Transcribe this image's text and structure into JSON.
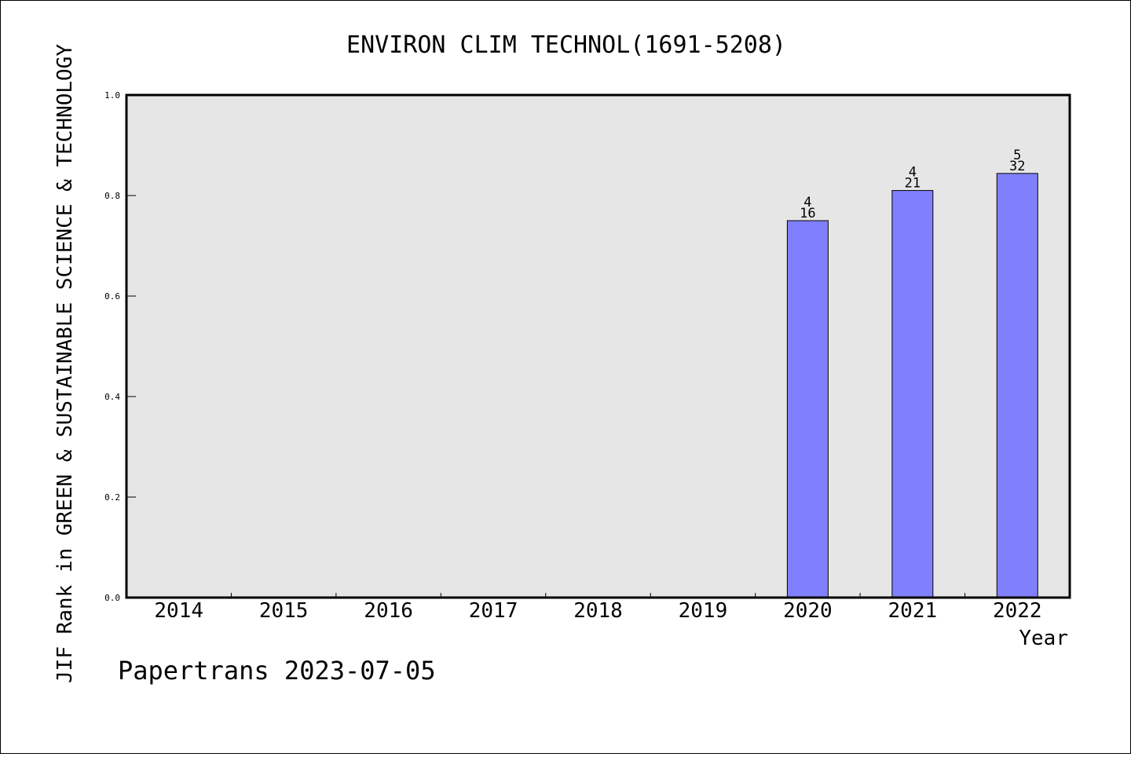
{
  "chart_data": {
    "type": "bar",
    "title": "ENVIRON CLIM TECHNOL(1691-5208)",
    "xlabel": "Year",
    "ylabel": "JIF Rank in GREEN & SUSTAINABLE SCIENCE & TECHNOLOGY",
    "categories": [
      "2014",
      "2015",
      "2016",
      "2017",
      "2018",
      "2019",
      "2020",
      "2021",
      "2022"
    ],
    "values": [
      null,
      null,
      null,
      null,
      null,
      null,
      0.75,
      0.81,
      0.844
    ],
    "bar_labels_top": [
      "",
      "",
      "",
      "",
      "",
      "",
      "4",
      "4",
      "5"
    ],
    "bar_labels_bottom": [
      "",
      "",
      "",
      "",
      "",
      "",
      "16",
      "21",
      "32"
    ],
    "ylim": [
      0,
      1.0
    ],
    "yticks": [
      "0.0",
      "0.2",
      "0.4",
      "0.6",
      "0.8",
      "1.0"
    ],
    "grid": false,
    "colors": {
      "bar": "#8080ff",
      "plot_background": "#e6e6e6",
      "axis": "#000000"
    }
  },
  "footer": "Papertrans 2023-07-05"
}
